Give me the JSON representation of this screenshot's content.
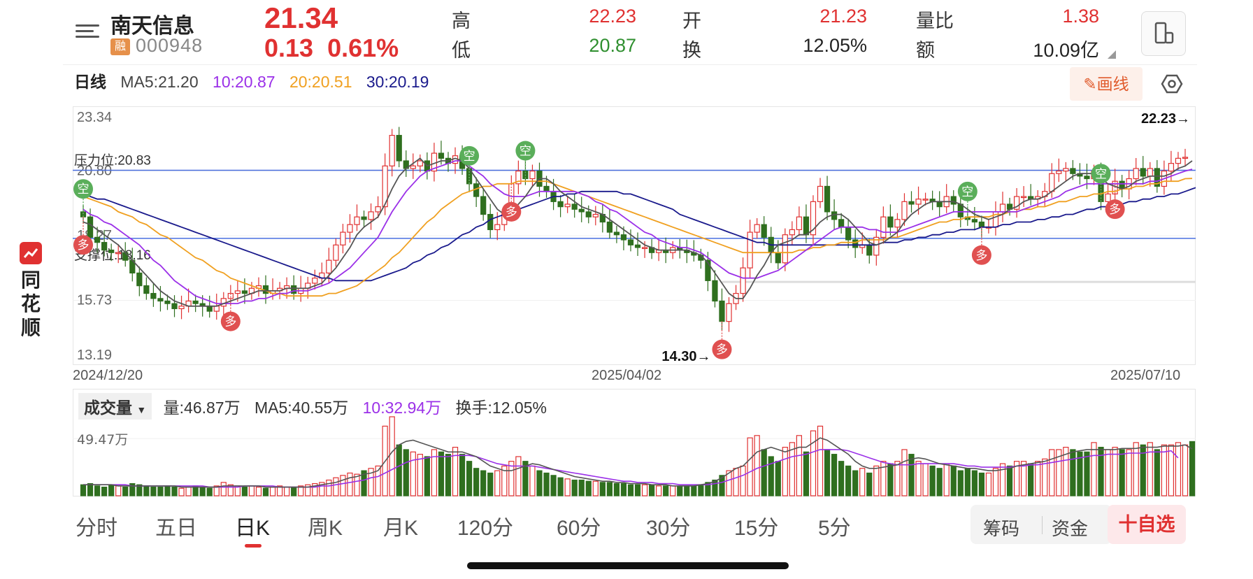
{
  "header": {
    "stock_name": "南天信息",
    "margin_badge": "融",
    "code": "000948",
    "price": "21.34",
    "change": "0.13",
    "change_pct": "0.61%",
    "stats": [
      {
        "label": "高",
        "value": "22.23",
        "color": "red"
      },
      {
        "label": "低",
        "value": "20.87",
        "color": "green"
      },
      {
        "label": "开",
        "value": "21.23",
        "color": "red"
      },
      {
        "label": "换",
        "value": "12.05%",
        "color": "black"
      },
      {
        "label": "量比",
        "value": "1.38",
        "color": "red"
      },
      {
        "label": "额",
        "value": "10.09亿",
        "color": "black"
      }
    ]
  },
  "ma_legend": {
    "period": "日线",
    "ma5": "MA5:21.20",
    "ma10": "10:20.87",
    "ma20": "20:20.51",
    "ma30": "30:20.19"
  },
  "toolbar": {
    "draw_label": "画线",
    "settings_icon": "settings-icon"
  },
  "kchart": {
    "y_labels": [
      "23.34",
      "20.80",
      "18.27",
      "15.73",
      "13.19"
    ],
    "resistance_label": "压力位:20.83",
    "support_label": "支撑位:18.16",
    "high_marker": "22.23→",
    "low_marker": "14.30→",
    "dates": [
      "2024/12/20",
      "2025/04/02",
      "2025/07/10"
    ],
    "signal_long": "多",
    "signal_short": "空",
    "signals": [
      {
        "t": 0,
        "type": "short"
      },
      {
        "t": 0,
        "type": "long"
      },
      {
        "t": 21,
        "type": "long"
      },
      {
        "t": 55,
        "type": "short"
      },
      {
        "t": 61,
        "type": "long"
      },
      {
        "t": 63,
        "type": "short"
      },
      {
        "t": 91,
        "type": "long"
      },
      {
        "t": 126,
        "type": "short"
      },
      {
        "t": 128,
        "type": "long"
      },
      {
        "t": 145,
        "type": "short"
      },
      {
        "t": 147,
        "type": "long"
      }
    ]
  },
  "chart_data": {
    "type": "candlestick",
    "x_start": "2024/12/20",
    "x_mid": "2025/04/02",
    "x_end": "2025/07/10",
    "ylim": [
      13.19,
      23.34
    ],
    "resistance": 20.83,
    "support": 18.16,
    "close": [
      19.0,
      18.2,
      18.0,
      17.7,
      17.6,
      17.6,
      17.3,
      16.8,
      16.3,
      16.0,
      15.8,
      15.7,
      15.6,
      15.4,
      15.5,
      15.7,
      15.6,
      15.5,
      15.3,
      15.5,
      15.8,
      16.0,
      16.1,
      16.0,
      16.2,
      16.3,
      16.0,
      16.1,
      16.2,
      16.3,
      16.0,
      16.2,
      16.4,
      16.6,
      16.8,
      17.3,
      17.9,
      18.4,
      18.7,
      19.0,
      18.9,
      19.2,
      19.4,
      21.0,
      22.2,
      21.2,
      20.9,
      21.0,
      21.2,
      20.8,
      21.5,
      21.3,
      21.1,
      21.4,
      20.9,
      20.3,
      19.8,
      19.1,
      18.5,
      18.7,
      19.2,
      20.3,
      20.8,
      20.5,
      20.8,
      20.2,
      20.0,
      19.6,
      19.4,
      19.5,
      19.3,
      19.2,
      19.0,
      19.1,
      18.8,
      18.4,
      18.3,
      18.1,
      17.9,
      17.8,
      17.8,
      17.6,
      17.7,
      17.6,
      17.8,
      17.7,
      17.6,
      17.5,
      17.3,
      16.5,
      15.7,
      14.9,
      15.6,
      16.0,
      17.0,
      18.4,
      18.7,
      18.2,
      17.6,
      17.2,
      18.3,
      18.5,
      19.0,
      18.3,
      19.6,
      20.2,
      19.2,
      18.9,
      18.6,
      18.1,
      17.8,
      17.9,
      17.5,
      18.2,
      19.0,
      18.6,
      18.9,
      19.6,
      19.5,
      19.7,
      19.7,
      19.6,
      19.4,
      19.8,
      19.5,
      19.0,
      18.9,
      18.8,
      18.6,
      18.6,
      19.2,
      19.5,
      19.3,
      19.8,
      19.8,
      19.7,
      19.8,
      20.0,
      20.7,
      20.8,
      20.9,
      20.7,
      20.6,
      20.5,
      20.8,
      19.6,
      19.9,
      20.4,
      20.1,
      20.5,
      20.9,
      20.6,
      20.9,
      20.2,
      20.8,
      21.1,
      21.3,
      21.34
    ],
    "ma5": [
      18.8,
      18.7,
      18.5,
      18.3,
      18.1,
      17.9,
      17.6,
      17.3,
      17.0,
      16.7,
      16.4,
      16.1,
      15.9,
      15.7,
      15.6,
      15.5,
      15.5,
      15.5,
      15.5,
      15.5,
      15.6,
      15.7,
      15.8,
      15.9,
      16.0,
      16.1,
      16.1,
      16.1,
      16.1,
      16.2,
      16.2,
      16.2,
      16.2,
      16.3,
      16.4,
      16.7,
      17.0,
      17.4,
      17.8,
      18.3,
      18.6,
      18.8,
      19.0,
      19.5,
      20.1,
      20.6,
      20.9,
      21.1,
      21.3,
      21.0,
      21.1,
      21.2,
      21.2,
      21.3,
      21.2,
      20.9,
      20.5,
      20.1,
      19.7,
      19.3,
      19.1,
      19.2,
      19.5,
      19.8,
      20.2,
      20.5,
      20.5,
      20.3,
      20.0,
      19.8,
      19.6,
      19.4,
      19.3,
      19.2,
      19.1,
      18.9,
      18.7,
      18.5,
      18.3,
      18.1,
      17.9,
      17.8,
      17.7,
      17.7,
      17.7,
      17.7,
      17.7,
      17.6,
      17.5,
      17.2,
      16.8,
      16.4,
      16.0,
      15.8,
      15.8,
      16.2,
      16.7,
      17.1,
      17.6,
      17.9,
      18.0,
      18.1,
      18.3,
      18.3,
      18.5,
      18.8,
      19.0,
      19.1,
      19.1,
      18.9,
      18.6,
      18.3,
      18.0,
      17.9,
      18.0,
      18.2,
      18.4,
      18.8,
      19.1,
      19.3,
      19.5,
      19.6,
      19.6,
      19.6,
      19.6,
      19.5,
      19.3,
      19.1,
      19.0,
      18.9,
      19.0,
      19.1,
      19.3,
      19.4,
      19.6,
      19.7,
      19.7,
      19.8,
      20.0,
      20.2,
      20.4,
      20.6,
      20.7,
      20.7,
      20.7,
      20.5,
      20.3,
      20.2,
      20.1,
      20.2,
      20.4,
      20.5,
      20.6,
      20.6,
      20.6,
      20.7,
      20.9,
      21.0,
      21.2
    ],
    "ma10": [
      19.3,
      19.1,
      19.0,
      18.8,
      18.7,
      18.5,
      18.3,
      18.1,
      17.9,
      17.6,
      17.3,
      17.1,
      16.8,
      16.5,
      16.3,
      16.1,
      15.9,
      15.8,
      15.7,
      15.6,
      15.6,
      15.6,
      15.6,
      15.7,
      15.7,
      15.8,
      15.8,
      15.9,
      16.0,
      16.0,
      16.1,
      16.1,
      16.1,
      16.2,
      16.3,
      16.4,
      16.6,
      16.8,
      17.0,
      17.3,
      17.6,
      17.9,
      18.2,
      18.7,
      19.2,
      19.6,
      20.0,
      20.3,
      20.6,
      20.8,
      20.9,
      21.0,
      21.1,
      21.2,
      21.2,
      21.0,
      20.8,
      20.6,
      20.3,
      20.1,
      19.9,
      19.8,
      19.8,
      19.8,
      19.9,
      20.0,
      20.0,
      20.0,
      20.0,
      20.0,
      20.0,
      19.9,
      19.8,
      19.6,
      19.5,
      19.3,
      19.2,
      19.0,
      18.8,
      18.6,
      18.4,
      18.3,
      18.1,
      18.0,
      17.9,
      17.8,
      17.8,
      17.7,
      17.6,
      17.4,
      17.2,
      17.0,
      16.8,
      16.7,
      16.6,
      16.6,
      16.6,
      16.7,
      16.8,
      16.9,
      17.1,
      17.3,
      17.5,
      17.7,
      17.9,
      18.1,
      18.3,
      18.5,
      18.6,
      18.6,
      18.6,
      18.6,
      18.5,
      18.5,
      18.4,
      18.4,
      18.4,
      18.5,
      18.6,
      18.7,
      18.8,
      18.9,
      19.0,
      19.1,
      19.2,
      19.2,
      19.2,
      19.2,
      19.2,
      19.2,
      19.2,
      19.2,
      19.2,
      19.2,
      19.3,
      19.4,
      19.5,
      19.6,
      19.7,
      19.8,
      20.0,
      20.1,
      20.2,
      20.3,
      20.3,
      20.3,
      20.3,
      20.3,
      20.3,
      20.3,
      20.3,
      20.3,
      20.4,
      20.4,
      20.5,
      20.6,
      20.7,
      20.8,
      20.87
    ],
    "ma20": [
      19.8,
      19.7,
      19.6,
      19.5,
      19.4,
      19.2,
      19.1,
      19.0,
      18.8,
      18.7,
      18.5,
      18.3,
      18.2,
      18.0,
      17.8,
      17.6,
      17.4,
      17.3,
      17.1,
      16.9,
      16.8,
      16.6,
      16.5,
      16.4,
      16.3,
      16.2,
      16.1,
      16.0,
      16.0,
      15.9,
      15.9,
      15.9,
      15.9,
      15.9,
      15.9,
      16.0,
      16.0,
      16.1,
      16.2,
      16.3,
      16.5,
      16.7,
      16.9,
      17.1,
      17.4,
      17.6,
      17.9,
      18.2,
      18.5,
      18.8,
      19.0,
      19.3,
      19.5,
      19.7,
      19.9,
      20.0,
      20.1,
      20.2,
      20.2,
      20.3,
      20.3,
      20.3,
      20.4,
      20.4,
      20.4,
      20.4,
      20.4,
      20.3,
      20.2,
      20.1,
      20.0,
      19.9,
      19.8,
      19.7,
      19.6,
      19.5,
      19.4,
      19.3,
      19.2,
      19.1,
      19.0,
      18.9,
      18.8,
      18.7,
      18.6,
      18.5,
      18.4,
      18.3,
      18.2,
      18.1,
      18.0,
      17.9,
      17.8,
      17.7,
      17.6,
      17.6,
      17.6,
      17.6,
      17.6,
      17.6,
      17.6,
      17.6,
      17.7,
      17.7,
      17.8,
      17.8,
      17.9,
      17.9,
      18.0,
      18.0,
      18.0,
      18.1,
      18.1,
      18.1,
      18.1,
      18.2,
      18.2,
      18.3,
      18.4,
      18.5,
      18.6,
      18.7,
      18.8,
      18.8,
      18.9,
      18.9,
      19.0,
      19.0,
      19.0,
      19.0,
      19.1,
      19.1,
      19.2,
      19.2,
      19.3,
      19.3,
      19.4,
      19.4,
      19.5,
      19.6,
      19.6,
      19.7,
      19.8,
      19.8,
      19.9,
      19.9,
      20.0,
      20.0,
      20.1,
      20.1,
      20.2,
      20.2,
      20.3,
      20.3,
      20.4,
      20.4,
      20.4,
      20.5,
      20.51
    ],
    "ma30": [
      19.9,
      19.8,
      19.7,
      19.7,
      19.6,
      19.5,
      19.4,
      19.3,
      19.2,
      19.1,
      19.0,
      18.9,
      18.8,
      18.7,
      18.6,
      18.5,
      18.4,
      18.3,
      18.2,
      18.1,
      18.0,
      17.9,
      17.8,
      17.7,
      17.6,
      17.5,
      17.4,
      17.3,
      17.2,
      17.1,
      17.0,
      16.9,
      16.8,
      16.7,
      16.6,
      16.6,
      16.5,
      16.5,
      16.5,
      16.5,
      16.5,
      16.5,
      16.6,
      16.7,
      16.8,
      16.9,
      17.0,
      17.2,
      17.3,
      17.5,
      17.6,
      17.8,
      17.9,
      18.1,
      18.3,
      18.4,
      18.6,
      18.7,
      18.9,
      19.0,
      19.1,
      19.2,
      19.3,
      19.4,
      19.5,
      19.6,
      19.7,
      19.8,
      19.8,
      19.9,
      19.9,
      20.0,
      20.0,
      20.0,
      20.0,
      20.0,
      20.0,
      19.9,
      19.9,
      19.8,
      19.7,
      19.6,
      19.5,
      19.4,
      19.3,
      19.1,
      19.0,
      18.9,
      18.8,
      18.7,
      18.6,
      18.5,
      18.4,
      18.3,
      18.2,
      18.1,
      18.0,
      18.0,
      17.9,
      17.9,
      17.9,
      17.9,
      17.9,
      17.9,
      17.9,
      17.9,
      17.9,
      17.9,
      17.9,
      17.9,
      17.9,
      17.9,
      17.9,
      17.9,
      18.0,
      18.0,
      18.0,
      18.1,
      18.1,
      18.2,
      18.2,
      18.3,
      18.3,
      18.4,
      18.4,
      18.5,
      18.5,
      18.5,
      18.6,
      18.6,
      18.6,
      18.7,
      18.7,
      18.8,
      18.8,
      18.8,
      18.9,
      18.9,
      19.0,
      19.0,
      19.1,
      19.1,
      19.2,
      19.3,
      19.3,
      19.4,
      19.4,
      19.5,
      19.5,
      19.6,
      19.6,
      19.7,
      19.7,
      19.8,
      19.8,
      19.9,
      19.9,
      20.0,
      20.1,
      20.19
    ]
  },
  "volume": {
    "selector_label": "成交量",
    "vol": "量:46.87万",
    "ma5": "MA5:40.55万",
    "ma10": "10:32.94万",
    "turnover": "换手:12.05%",
    "y_label": "49.47万",
    "ylim": [
      0,
      68
    ],
    "values": [
      10,
      11,
      9,
      8,
      10,
      9,
      8,
      11,
      10,
      9,
      8,
      8,
      9,
      8,
      7,
      8,
      9,
      8,
      7,
      9,
      12,
      10,
      9,
      8,
      9,
      8,
      7,
      8,
      9,
      8,
      8,
      9,
      10,
      11,
      12,
      14,
      16,
      18,
      20,
      19,
      22,
      24,
      26,
      60,
      68,
      44,
      40,
      38,
      36,
      34,
      40,
      38,
      36,
      42,
      36,
      30,
      24,
      22,
      20,
      22,
      26,
      30,
      34,
      30,
      26,
      22,
      20,
      18,
      16,
      15,
      14,
      14,
      13,
      13,
      12,
      12,
      11,
      11,
      10,
      10,
      10,
      10,
      9,
      9,
      9,
      9,
      9,
      9,
      10,
      12,
      14,
      18,
      22,
      24,
      26,
      50,
      52,
      40,
      34,
      30,
      42,
      46,
      52,
      38,
      56,
      60,
      40,
      36,
      30,
      26,
      22,
      24,
      20,
      26,
      30,
      28,
      30,
      40,
      36,
      30,
      28,
      26,
      24,
      28,
      26,
      22,
      24,
      22,
      20,
      20,
      24,
      28,
      26,
      30,
      30,
      28,
      30,
      32,
      40,
      40,
      42,
      40,
      38,
      38,
      46,
      42,
      40,
      42,
      40,
      40,
      46,
      44,
      46,
      40,
      44,
      44,
      46,
      44,
      46.87
    ],
    "ma5_line": [
      10,
      10,
      10,
      10,
      10,
      9,
      9,
      9,
      9,
      9,
      9,
      9,
      9,
      9,
      8,
      8,
      8,
      8,
      8,
      8,
      9,
      9,
      9,
      9,
      9,
      9,
      8,
      8,
      8,
      8,
      8,
      8,
      8,
      9,
      10,
      11,
      12,
      14,
      16,
      17,
      19,
      20,
      22,
      30,
      38,
      44,
      47,
      48,
      46,
      44,
      42,
      40,
      38,
      38,
      38,
      36,
      34,
      30,
      26,
      24,
      22,
      22,
      24,
      26,
      28,
      27,
      25,
      23,
      21,
      19,
      17,
      16,
      15,
      14,
      13,
      13,
      12,
      12,
      11,
      11,
      11,
      10,
      10,
      10,
      9,
      9,
      9,
      9,
      10,
      11,
      13,
      16,
      20,
      24,
      26,
      32,
      38,
      40,
      42,
      40,
      38,
      40,
      42,
      42,
      46,
      50,
      48,
      44,
      40,
      36,
      30,
      26,
      24,
      24,
      25,
      26,
      27,
      30,
      32,
      33,
      32,
      30,
      28,
      27,
      26,
      25,
      24,
      24,
      23,
      22,
      22,
      23,
      24,
      26,
      27,
      28,
      29,
      30,
      32,
      34,
      36,
      38,
      39,
      40,
      40,
      40,
      40,
      40,
      41,
      41,
      41,
      42,
      42,
      42,
      43,
      43,
      43,
      44,
      40.55
    ],
    "ma10_line": [
      10,
      10,
      10,
      10,
      10,
      10,
      10,
      9,
      9,
      9,
      9,
      9,
      9,
      9,
      9,
      9,
      9,
      9,
      8,
      8,
      8,
      8,
      8,
      9,
      9,
      9,
      9,
      9,
      8,
      8,
      8,
      8,
      8,
      8,
      9,
      9,
      10,
      11,
      12,
      13,
      14,
      16,
      17,
      20,
      23,
      26,
      29,
      31,
      32,
      33,
      34,
      34,
      34,
      35,
      35,
      35,
      34,
      32,
      30,
      28,
      27,
      26,
      26,
      26,
      26,
      25,
      24,
      23,
      22,
      21,
      20,
      19,
      18,
      17,
      16,
      15,
      14,
      13,
      13,
      12,
      12,
      12,
      11,
      11,
      11,
      10,
      10,
      10,
      10,
      10,
      11,
      12,
      14,
      16,
      18,
      21,
      24,
      26,
      28,
      30,
      32,
      34,
      35,
      36,
      38,
      40,
      40,
      40,
      40,
      39,
      37,
      35,
      33,
      31,
      29,
      28,
      27,
      27,
      27,
      28,
      28,
      28,
      28,
      28,
      28,
      27,
      26,
      26,
      25,
      25,
      25,
      25,
      25,
      26,
      26,
      27,
      27,
      28,
      29,
      30,
      31,
      32,
      33,
      34,
      35,
      35,
      36,
      36,
      36,
      37,
      37,
      37,
      38,
      38,
      38,
      39,
      32.94
    ]
  },
  "tabs": [
    "分时",
    "五日",
    "日K",
    "周K",
    "月K",
    "120分",
    "60分",
    "30分",
    "15分",
    "5分"
  ],
  "active_tab": "日K",
  "bottom": {
    "chips_label": "筹码",
    "funds_label": "资金",
    "add_label": "十自选"
  },
  "side_logo": {
    "text": "同花顺"
  },
  "colors": {
    "up": "#e03131",
    "down": "#2f6f1f",
    "ma5": "#555555",
    "ma10": "#9b30e8",
    "ma20": "#f0a020",
    "ma30": "#1a1a8c",
    "level": "#4a6fe0"
  }
}
